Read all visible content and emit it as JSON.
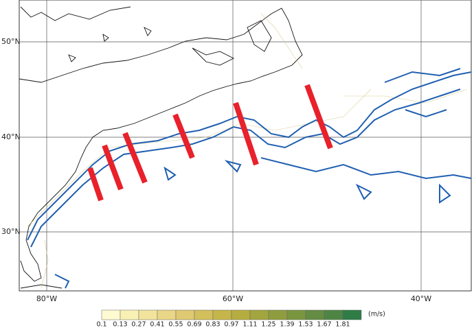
{
  "map": {
    "lat_labels": [
      "50°N",
      "40°N",
      "30°N"
    ],
    "lon_labels": [
      "80°W",
      "60°W",
      "40°W"
    ]
  },
  "colorbar": {
    "labels": [
      "0.1",
      "0.13",
      "0.27",
      "0.41",
      "0.55",
      "0.69",
      "0.83",
      "0.97",
      "1.11",
      "1.25",
      "1.39",
      "1.53",
      "1.67",
      "1.81"
    ],
    "unit": "(m/s)",
    "colors": [
      "#fffad2",
      "#f9f0b4",
      "#f2e49c",
      "#ead687",
      "#dfc972",
      "#d3bf5c",
      "#c6b64a",
      "#b6ad40",
      "#a3a53e",
      "#8f9d3f",
      "#7a9540",
      "#648c42",
      "#4f8544",
      "#2f7c47"
    ]
  }
}
